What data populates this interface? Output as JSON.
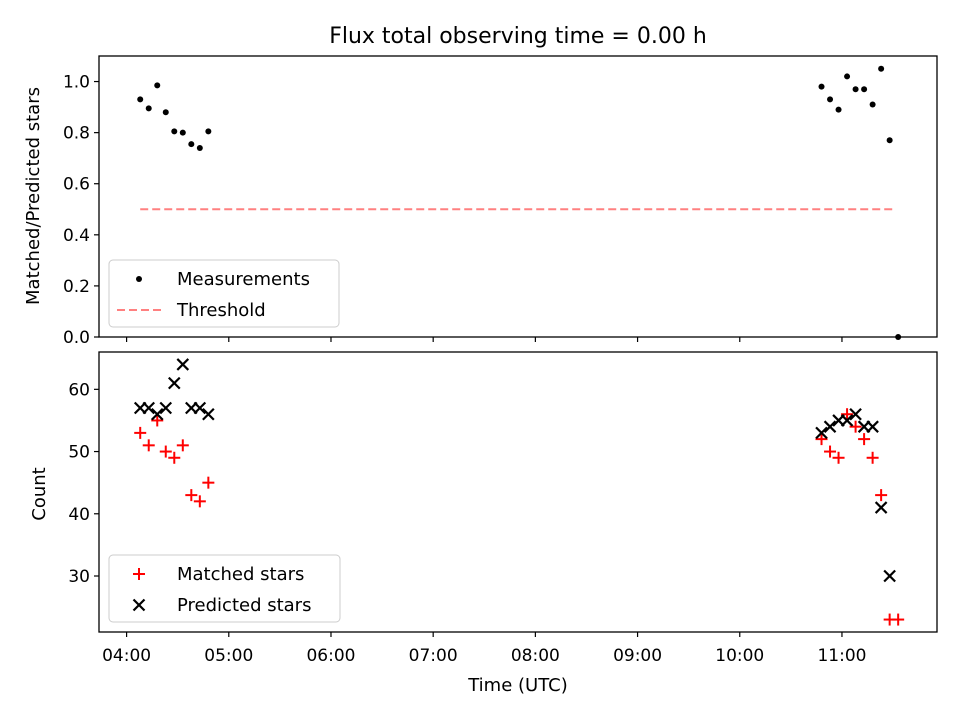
{
  "chart_data": [
    {
      "type": "scatter",
      "title": "Flux total observing time = 0.00 h",
      "xlabel": "",
      "ylabel": "Matched/Predicted stars",
      "ylim": [
        0,
        1.1
      ],
      "yticks": [
        {
          "value": 0.0,
          "label": "0.0"
        },
        {
          "value": 0.2,
          "label": "0.2"
        },
        {
          "value": 0.4,
          "label": "0.4"
        },
        {
          "value": 0.6,
          "label": "0.6"
        },
        {
          "value": 0.8,
          "label": "0.8"
        },
        {
          "value": 1.0,
          "label": "1.0"
        }
      ],
      "xlim_hours": [
        3.73,
        11.93
      ],
      "legend_position": "lower-left",
      "series": [
        {
          "name": "Measurements",
          "marker": "dot",
          "color": "#000000",
          "points": [
            [
              "04:08",
              0.93
            ],
            [
              "04:13",
              0.895
            ],
            [
              "04:18",
              0.985
            ],
            [
              "04:23",
              0.88
            ],
            [
              "04:28",
              0.805
            ],
            [
              "04:33",
              0.8
            ],
            [
              "04:38",
              0.755
            ],
            [
              "04:43",
              0.74
            ],
            [
              "04:48",
              0.805
            ],
            [
              "10:48",
              0.98
            ],
            [
              "10:53",
              0.93
            ],
            [
              "10:58",
              0.89
            ],
            [
              "11:03",
              1.02
            ],
            [
              "11:08",
              0.97
            ],
            [
              "11:13",
              0.97
            ],
            [
              "11:18",
              0.91
            ],
            [
              "11:23",
              1.05
            ],
            [
              "11:28",
              0.77
            ],
            [
              "11:33",
              0.0
            ]
          ]
        },
        {
          "name": "Threshold",
          "marker": "dashed-line",
          "color": "#ff8080",
          "points": [
            [
              "04:08",
              0.5
            ],
            [
              "11:30",
              0.5
            ]
          ]
        }
      ]
    },
    {
      "type": "scatter",
      "title": "",
      "xlabel": "Time (UTC)",
      "ylabel": "Count",
      "ylim": [
        21,
        66
      ],
      "yticks": [
        {
          "value": 30,
          "label": "30"
        },
        {
          "value": 40,
          "label": "40"
        },
        {
          "value": 50,
          "label": "50"
        },
        {
          "value": 60,
          "label": "60"
        }
      ],
      "xlim_hours": [
        3.73,
        11.93
      ],
      "xticks": [
        "04:00",
        "05:00",
        "06:00",
        "07:00",
        "08:00",
        "09:00",
        "10:00",
        "11:00"
      ],
      "legend_position": "lower-left",
      "series": [
        {
          "name": "Matched stars",
          "marker": "plus",
          "color": "#ff0000",
          "points": [
            [
              "04:08",
              53
            ],
            [
              "04:13",
              51
            ],
            [
              "04:18",
              55
            ],
            [
              "04:23",
              50
            ],
            [
              "04:28",
              49
            ],
            [
              "04:33",
              51
            ],
            [
              "04:38",
              43
            ],
            [
              "04:43",
              42
            ],
            [
              "04:48",
              45
            ],
            [
              "10:48",
              52
            ],
            [
              "10:53",
              50
            ],
            [
              "10:58",
              49
            ],
            [
              "11:03",
              56
            ],
            [
              "11:08",
              54
            ],
            [
              "11:13",
              52
            ],
            [
              "11:18",
              49
            ],
            [
              "11:23",
              43
            ],
            [
              "11:28",
              23
            ],
            [
              "11:33",
              23
            ]
          ]
        },
        {
          "name": "Predicted stars",
          "marker": "x",
          "color": "#000000",
          "points": [
            [
              "04:08",
              57
            ],
            [
              "04:13",
              57
            ],
            [
              "04:18",
              56
            ],
            [
              "04:23",
              57
            ],
            [
              "04:28",
              61
            ],
            [
              "04:33",
              64
            ],
            [
              "04:38",
              57
            ],
            [
              "04:43",
              57
            ],
            [
              "04:48",
              56
            ],
            [
              "10:48",
              53
            ],
            [
              "10:53",
              54
            ],
            [
              "10:58",
              55
            ],
            [
              "11:03",
              55
            ],
            [
              "11:08",
              56
            ],
            [
              "11:13",
              54
            ],
            [
              "11:18",
              54
            ],
            [
              "11:23",
              41
            ],
            [
              "11:28",
              30
            ]
          ]
        }
      ]
    }
  ]
}
